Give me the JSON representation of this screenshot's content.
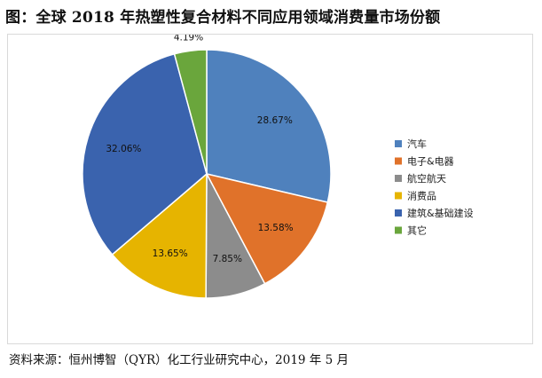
{
  "title": "图：全球 2018 年热塑性复合材料不同应用领域消费量市场份额",
  "source": "资料来源：恒州博智（QYR）化工行业研究中心，2019 年 5 月",
  "chart_data": {
    "type": "pie",
    "legend_position": "right",
    "start_angle_deg": 0,
    "direction": "clockwise",
    "slices": [
      {
        "name": "汽车",
        "value": 28.67,
        "label": "28.67%",
        "color": "#4F81BD"
      },
      {
        "name": "电子&电器",
        "value": 13.58,
        "label": "13.58%",
        "color": "#E0722A"
      },
      {
        "name": "航空航天",
        "value": 7.85,
        "label": "7.85%",
        "color": "#8C8C8C"
      },
      {
        "name": "消费品",
        "value": 13.65,
        "label": "13.65%",
        "color": "#E6B400"
      },
      {
        "name": "建筑&基础建设",
        "value": 32.06,
        "label": "32.06%",
        "color": "#3A63AE"
      },
      {
        "name": "其它",
        "value": 4.19,
        "label": "4.19%",
        "color": "#6AA63C"
      }
    ]
  }
}
